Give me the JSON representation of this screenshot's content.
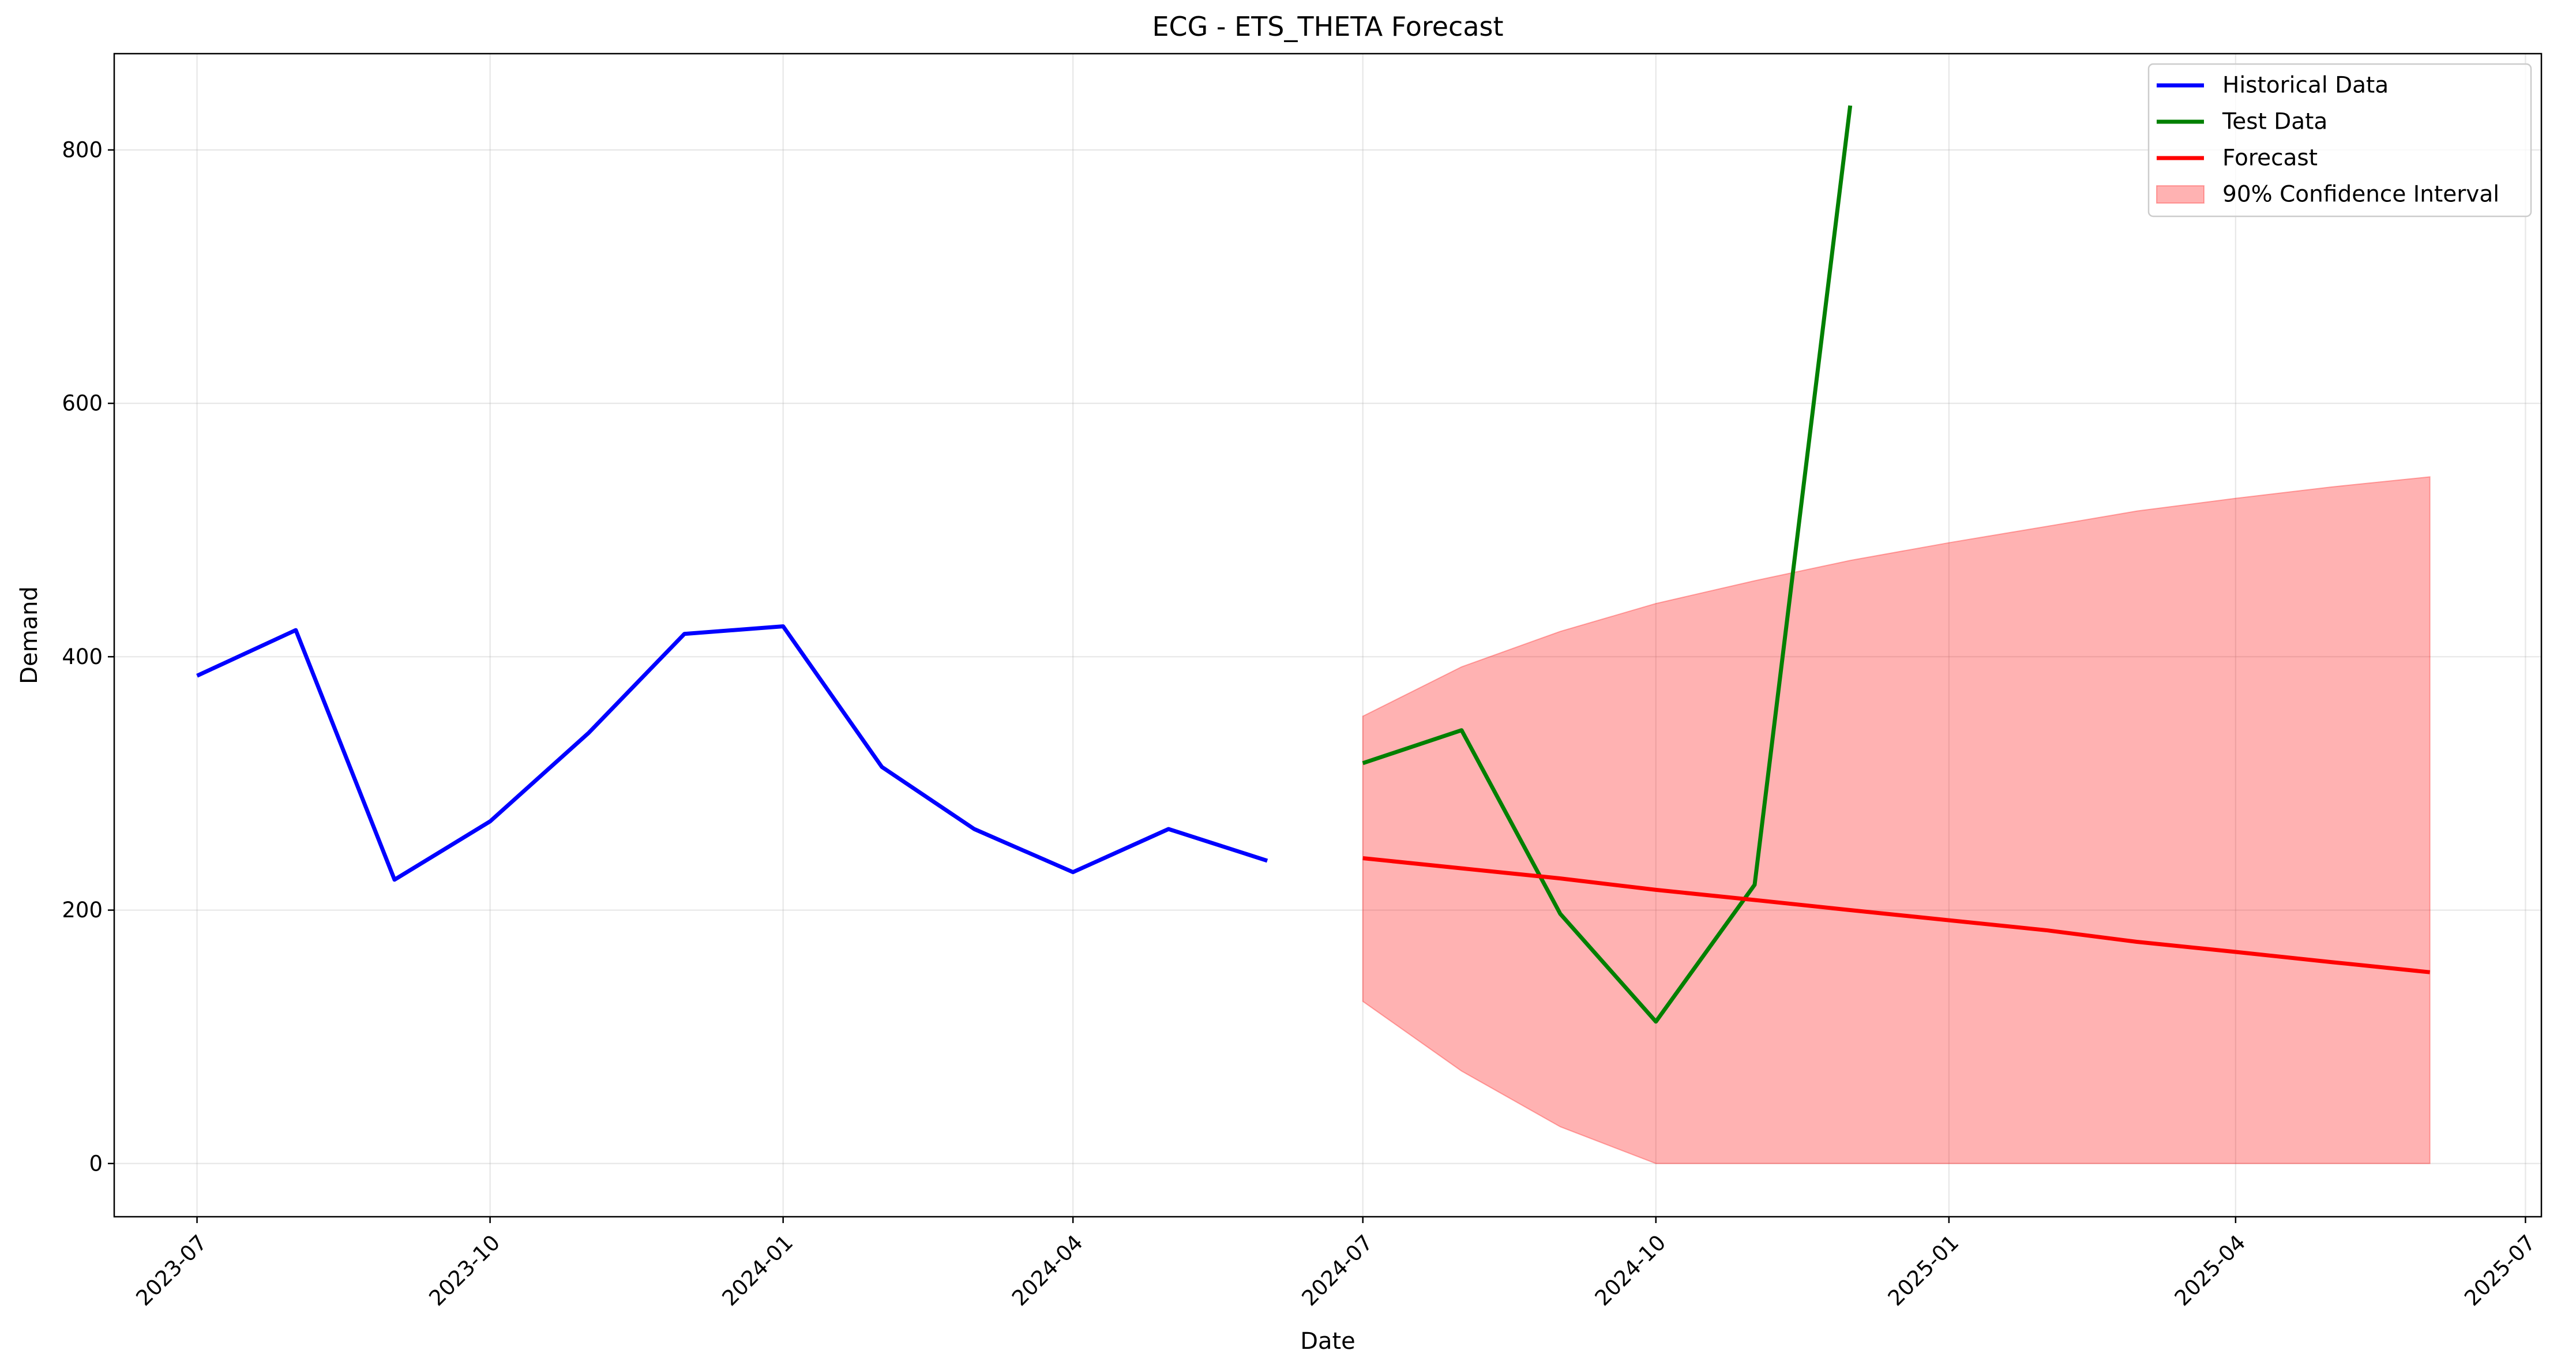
{
  "chart_data": {
    "type": "line",
    "title": "ECG - ETS_THETA Forecast",
    "xlabel": "Date",
    "ylabel": "Demand",
    "xlim": [
      "2023-06-05",
      "2025-07-06"
    ],
    "ylim": [
      -42,
      876
    ],
    "grid": true,
    "legend_position": "top-right",
    "x_ticks": [
      "2023-07",
      "2023-10",
      "2024-01",
      "2024-04",
      "2024-07",
      "2024-10",
      "2025-01",
      "2025-04",
      "2025-07"
    ],
    "y_ticks": [
      0,
      200,
      400,
      600,
      800
    ],
    "series": [
      {
        "name": "Historical Data",
        "color": "#0000ff",
        "points": [
          {
            "x": "2023-07-01",
            "y": 385
          },
          {
            "x": "2023-08-01",
            "y": 421
          },
          {
            "x": "2023-09-01",
            "y": 224
          },
          {
            "x": "2023-10-01",
            "y": 270
          },
          {
            "x": "2023-11-01",
            "y": 340
          },
          {
            "x": "2023-12-01",
            "y": 418
          },
          {
            "x": "2024-01-01",
            "y": 424
          },
          {
            "x": "2024-02-01",
            "y": 313
          },
          {
            "x": "2024-03-01",
            "y": 264
          },
          {
            "x": "2024-04-01",
            "y": 230
          },
          {
            "x": "2024-05-01",
            "y": 264
          },
          {
            "x": "2024-06-01",
            "y": 239
          }
        ]
      },
      {
        "name": "Test Data",
        "color": "#008000",
        "points": [
          {
            "x": "2024-07-01",
            "y": 316
          },
          {
            "x": "2024-08-01",
            "y": 342
          },
          {
            "x": "2024-09-01",
            "y": 197
          },
          {
            "x": "2024-10-01",
            "y": 112
          },
          {
            "x": "2024-11-01",
            "y": 220
          },
          {
            "x": "2024-12-01",
            "y": 835
          }
        ]
      },
      {
        "name": "Forecast",
        "color": "#ff0000",
        "points": [
          {
            "x": "2024-07-01",
            "y": 241
          },
          {
            "x": "2024-08-01",
            "y": 233
          },
          {
            "x": "2024-09-01",
            "y": 225
          },
          {
            "x": "2024-10-01",
            "y": 216
          },
          {
            "x": "2024-11-01",
            "y": 208
          },
          {
            "x": "2024-12-01",
            "y": 200
          },
          {
            "x": "2025-01-01",
            "y": 192
          },
          {
            "x": "2025-02-01",
            "y": 184
          },
          {
            "x": "2025-03-01",
            "y": 175
          },
          {
            "x": "2025-04-01",
            "y": 167
          },
          {
            "x": "2025-05-01",
            "y": 159
          },
          {
            "x": "2025-06-01",
            "y": 151
          }
        ]
      }
    ],
    "confidence_interval": {
      "name": "90% Confidence Interval",
      "color": "#ff0000",
      "opacity": 0.3,
      "points": [
        {
          "x": "2024-07-01",
          "lower": 128,
          "upper": 353
        },
        {
          "x": "2024-08-01",
          "lower": 73,
          "upper": 392
        },
        {
          "x": "2024-09-01",
          "lower": 29,
          "upper": 420
        },
        {
          "x": "2024-10-01",
          "lower": 0,
          "upper": 442
        },
        {
          "x": "2024-11-01",
          "lower": 0,
          "upper": 460
        },
        {
          "x": "2024-12-01",
          "lower": 0,
          "upper": 476
        },
        {
          "x": "2025-01-01",
          "lower": 0,
          "upper": 490
        },
        {
          "x": "2025-02-01",
          "lower": 0,
          "upper": 503
        },
        {
          "x": "2025-03-01",
          "lower": 0,
          "upper": 515
        },
        {
          "x": "2025-04-01",
          "lower": 0,
          "upper": 525
        },
        {
          "x": "2025-05-01",
          "lower": 0,
          "upper": 534
        },
        {
          "x": "2025-06-01",
          "lower": 0,
          "upper": 542
        }
      ]
    }
  }
}
